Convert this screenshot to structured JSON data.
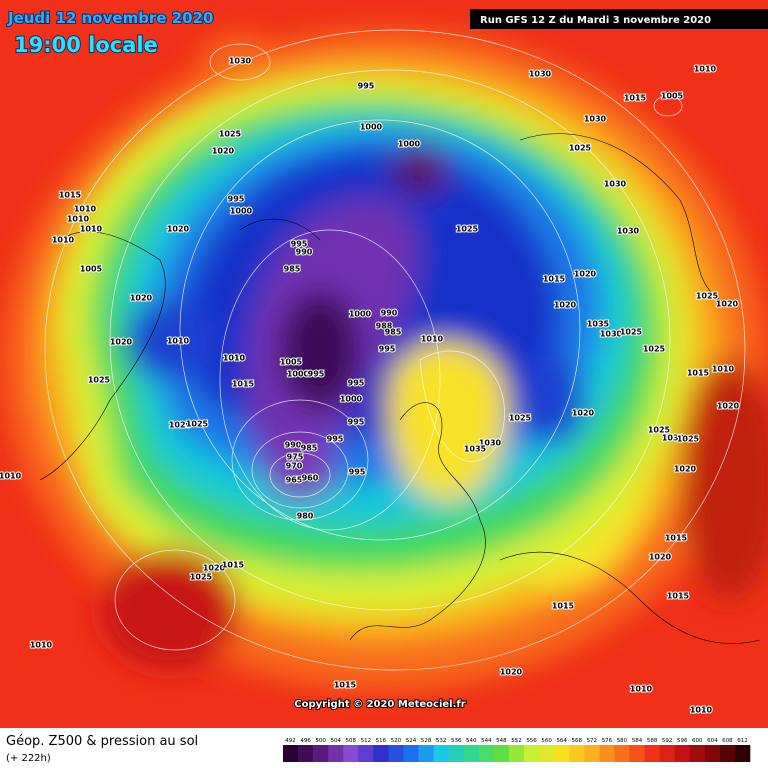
{
  "header": {
    "date": "Jeudi 12 novembre 2020",
    "time": "19:00 locale",
    "run": "Run GFS 12 Z du Mardi 3 novembre 2020"
  },
  "map": {
    "isobar_labels": [
      1030,
      995,
      1000,
      1000,
      1030,
      1010,
      1015,
      1005,
      1030,
      1025,
      1020,
      1025,
      1030,
      1015,
      995,
      1000,
      1010,
      1010,
      1010,
      1020,
      1010,
      995,
      990,
      1025,
      1030,
      985,
      1005,
      1015,
      1020,
      1020,
      1020,
      1025,
      1020,
      1000,
      990,
      988,
      985,
      1035,
      1030,
      1025,
      1020,
      1010,
      995,
      1010,
      1025,
      1010,
      1005,
      1000,
      995,
      1015,
      1010,
      1025,
      1015,
      995,
      1000,
      1020,
      1025,
      1020,
      995,
      1020,
      1025,
      1025,
      1030,
      1025,
      995,
      1030,
      1035,
      990,
      985,
      975,
      970,
      965,
      960,
      1020,
      995,
      1010,
      980,
      1015,
      1020,
      1015,
      1025,
      1020,
      1015,
      1015,
      1010,
      1020,
      1015,
      1010,
      1010
    ],
    "copyright": "Copyright © 2020 Meteociel.fr"
  },
  "footer": {
    "title": "Géop. Z500 & pression au sol",
    "lead": "(+ 222h)",
    "colorbar_labels": [
      492,
      496,
      500,
      504,
      508,
      512,
      516,
      520,
      524,
      528,
      532,
      536,
      540,
      544,
      548,
      552,
      556,
      560,
      564,
      568,
      572,
      576,
      580,
      584,
      588,
      592,
      596,
      600,
      604,
      608,
      612
    ]
  }
}
